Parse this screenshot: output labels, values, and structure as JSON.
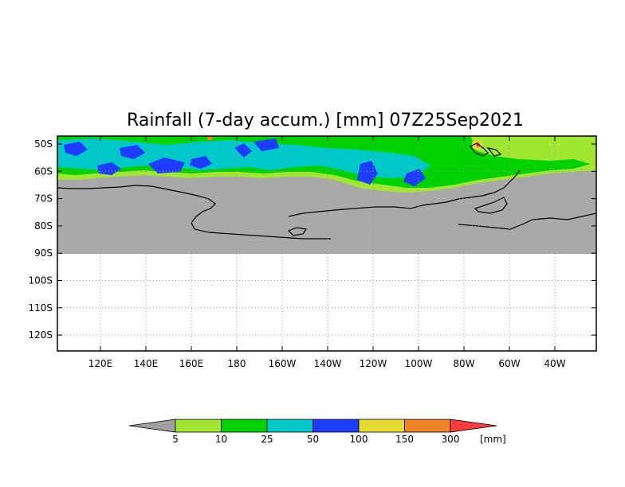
{
  "title": "Rainfall (7-day accum.) [mm] 07Z25Sep2021",
  "map": {
    "lat_labels": [
      "50S",
      "60S",
      "70S",
      "80S",
      "90S",
      "100S",
      "110S",
      "120S"
    ],
    "lon_labels": [
      "120E",
      "140E",
      "160E",
      "180",
      "160W",
      "140W",
      "120W",
      "100W",
      "80W",
      "60W",
      "40W"
    ],
    "colors": {
      "land": "#a9a9a9",
      "background": "#ffffff",
      "coast": "#000000",
      "grid": "#999999"
    }
  },
  "legend": {
    "unit": "[mm]",
    "labels": [
      "5",
      "10",
      "25",
      "50",
      "100",
      "150",
      "300"
    ],
    "colors": [
      "#a0a0a0",
      "#a0e632",
      "#00d200",
      "#00c8c8",
      "#1e3cff",
      "#e6dc32",
      "#f08228",
      "#fa3c3c"
    ]
  }
}
